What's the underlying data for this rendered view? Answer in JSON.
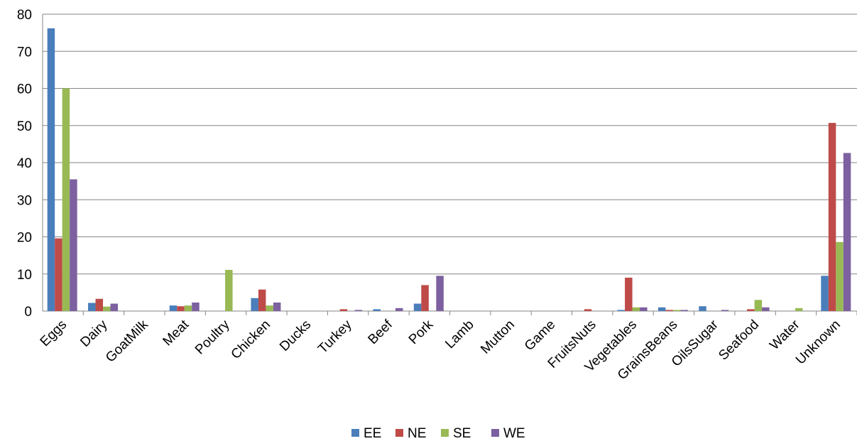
{
  "chart_data": {
    "type": "bar",
    "title": "",
    "xlabel": "",
    "ylabel": "",
    "ylim": [
      0,
      80
    ],
    "yticks": [
      0,
      10,
      20,
      30,
      40,
      50,
      60,
      70,
      80
    ],
    "grid": "horizontal",
    "legend_position": "bottom",
    "categories": [
      "Eggs",
      "Dairy",
      "GoatMilk",
      "Meat",
      "Poultry",
      "Chicken",
      "Ducks",
      "Turkey",
      "Beef",
      "Pork",
      "Lamb",
      "Mutton",
      "Game",
      "FruitsNuts",
      "Vegetables",
      "GrainsBeans",
      "OilsSugar",
      "Seafood",
      "Water",
      "Unknown"
    ],
    "series": [
      {
        "name": "EE",
        "color": "#4a7ebb",
        "values": [
          76.2,
          2.2,
          0,
          1.5,
          0,
          3.5,
          0,
          0,
          0.5,
          2.0,
          0,
          0,
          0,
          0,
          0.3,
          1.0,
          1.3,
          0,
          0,
          9.5
        ]
      },
      {
        "name": "NE",
        "color": "#be4b48",
        "values": [
          19.6,
          3.3,
          0,
          1.3,
          0,
          5.8,
          0,
          0.5,
          0,
          7.0,
          0,
          0,
          0,
          0.5,
          9.0,
          0.3,
          0,
          0.5,
          0,
          50.7
        ]
      },
      {
        "name": "SE",
        "color": "#98b954",
        "values": [
          60.0,
          1.2,
          0,
          1.5,
          11.1,
          1.5,
          0,
          0,
          0,
          0,
          0,
          0,
          0,
          0,
          1.0,
          0.3,
          0,
          3.0,
          0.8,
          18.6
        ]
      },
      {
        "name": "WE",
        "color": "#7d60a0",
        "values": [
          35.5,
          2.0,
          0,
          2.3,
          0,
          2.3,
          0,
          0.3,
          0.8,
          9.5,
          0,
          0,
          0,
          0,
          1.0,
          0.3,
          0.3,
          1.0,
          0,
          42.6
        ]
      }
    ]
  }
}
